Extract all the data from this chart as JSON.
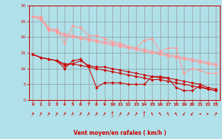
{
  "title": "",
  "xlabel": "Vent moyen/en rafales ( km/h )",
  "xlabel_color": "#cc0000",
  "bg_color": "#b0e0e8",
  "grid_color": "#888888",
  "tick_color": "#cc0000",
  "xlim": [
    -0.5,
    23.5
  ],
  "ylim": [
    0,
    30
  ],
  "yticks": [
    0,
    5,
    10,
    15,
    20,
    25,
    30
  ],
  "xticks": [
    0,
    1,
    2,
    3,
    4,
    5,
    6,
    7,
    8,
    9,
    10,
    11,
    12,
    13,
    14,
    15,
    16,
    17,
    18,
    19,
    20,
    21,
    22,
    23
  ],
  "lines_dark_red": [
    [
      14.5,
      13.5,
      13.0,
      12.5,
      10.0,
      12.5,
      13.0,
      10.5,
      4.0,
      5.5,
      5.5,
      5.5,
      5.0,
      5.0,
      5.0,
      7.5,
      7.0,
      7.0,
      4.0,
      3.0,
      3.0,
      4.5,
      3.5,
      3.0
    ],
    [
      14.5,
      13.5,
      13.0,
      12.5,
      11.0,
      11.5,
      12.5,
      11.0,
      10.5,
      10.5,
      10.0,
      9.5,
      9.0,
      8.5,
      8.0,
      7.5,
      7.5,
      7.0,
      6.5,
      6.0,
      5.5,
      5.0,
      4.0,
      3.5
    ],
    [
      14.5,
      13.5,
      13.0,
      12.5,
      11.5,
      11.5,
      11.0,
      10.5,
      10.0,
      9.5,
      9.0,
      8.5,
      8.0,
      7.5,
      7.0,
      6.5,
      6.5,
      6.0,
      5.5,
      5.0,
      4.5,
      4.0,
      3.5,
      3.0
    ]
  ],
  "lines_light_red": [
    [
      26.5,
      26.5,
      22.0,
      22.5,
      18.0,
      23.5,
      23.0,
      20.5,
      20.5,
      19.5,
      18.5,
      18.0,
      17.0,
      16.5,
      19.0,
      19.5,
      15.5,
      16.5,
      16.5,
      8.5,
      10.0,
      9.5,
      8.5,
      8.5
    ],
    [
      26.5,
      26.0,
      23.0,
      22.0,
      21.0,
      20.5,
      20.0,
      19.5,
      19.0,
      18.5,
      18.0,
      17.5,
      17.0,
      16.5,
      16.0,
      15.5,
      15.0,
      14.5,
      14.0,
      13.5,
      13.0,
      12.5,
      12.0,
      11.5
    ],
    [
      26.5,
      25.5,
      22.5,
      21.5,
      20.5,
      20.0,
      19.5,
      19.0,
      18.5,
      18.0,
      17.5,
      17.0,
      16.5,
      16.0,
      15.5,
      15.0,
      14.5,
      14.0,
      13.5,
      13.0,
      12.5,
      12.0,
      11.5,
      11.0
    ]
  ],
  "dark_red": "#cc0000",
  "light_red": "#ff9999",
  "markersize": 2.0,
  "linewidth": 0.8,
  "wind_angles": [
    225,
    225,
    225,
    225,
    225,
    225,
    225,
    225,
    225,
    225,
    180,
    225,
    225,
    225,
    180,
    135,
    135,
    135,
    135,
    45,
    45,
    90,
    270,
    225
  ]
}
